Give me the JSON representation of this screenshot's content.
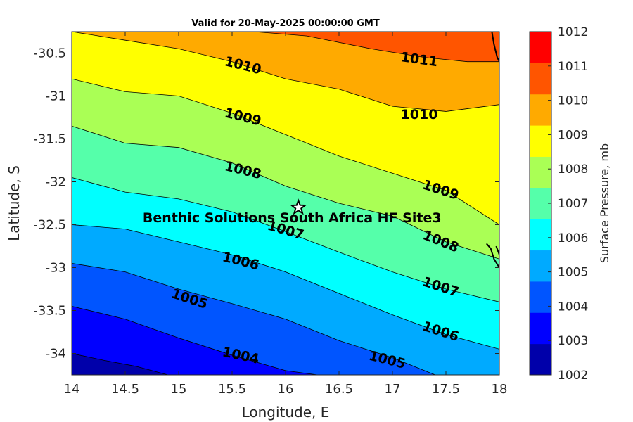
{
  "chart_data": {
    "type": "contour",
    "title": "Valid for 20-May-2025 00:00:00 GMT",
    "xlabel": "Longitude, E",
    "ylabel": "Latitude, S",
    "colorbar_label": "Surface Pressure, mb",
    "xlim": [
      14,
      18
    ],
    "ylim": [
      -34.25,
      -30.25
    ],
    "x_ticks": [
      14,
      14.5,
      15,
      15.5,
      16,
      16.5,
      17,
      17.5,
      18
    ],
    "x_tick_labels": [
      "14",
      "14.5",
      "15",
      "15.5",
      "16",
      "16.5",
      "17",
      "17.5",
      "18"
    ],
    "y_ticks": [
      -30.5,
      -31,
      -31.5,
      -32,
      -32.5,
      -33,
      -33.5,
      -34
    ],
    "y_tick_labels": [
      "-30.5",
      "-31",
      "-31.5",
      "-32",
      "-32.5",
      "-33",
      "-33.5",
      "-34"
    ],
    "colorbar_ticks": [
      "1002",
      "1003",
      "1004",
      "1005",
      "1006",
      "1007",
      "1008",
      "1009",
      "1010",
      "1011",
      "1012"
    ],
    "levels": [
      1002,
      1003,
      1004,
      1005,
      1006,
      1007,
      1008,
      1009,
      1010,
      1011,
      1012
    ],
    "level_colors": [
      "#0000aa",
      "#0000ff",
      "#0055ff",
      "#00aaff",
      "#00ffff",
      "#55ffaa",
      "#aaff55",
      "#ffff00",
      "#ffaa00",
      "#ff5500",
      "#ff0000"
    ],
    "contours": [
      {
        "level": 1011,
        "points": [
          [
            15.7,
            -30.25
          ],
          [
            16.2,
            -30.3
          ],
          [
            16.8,
            -30.45
          ],
          [
            17.3,
            -30.55
          ],
          [
            17.7,
            -30.6
          ],
          [
            18,
            -30.6
          ]
        ]
      },
      {
        "level": 1010,
        "points": [
          [
            14,
            -30.25
          ],
          [
            14.5,
            -30.35
          ],
          [
            15,
            -30.45
          ],
          [
            15.5,
            -30.6
          ],
          [
            16,
            -30.8
          ],
          [
            16.5,
            -30.92
          ],
          [
            17,
            -31.12
          ],
          [
            17.5,
            -31.18
          ],
          [
            18,
            -31.1
          ]
        ]
      },
      {
        "level": 1009,
        "points": [
          [
            14,
            -30.8
          ],
          [
            14.5,
            -30.95
          ],
          [
            15,
            -31.0
          ],
          [
            15.5,
            -31.2
          ],
          [
            16,
            -31.45
          ],
          [
            16.5,
            -31.7
          ],
          [
            17,
            -31.9
          ],
          [
            17.5,
            -32.1
          ],
          [
            18,
            -32.5
          ]
        ]
      },
      {
        "level": 1008,
        "points": [
          [
            14,
            -31.35
          ],
          [
            14.5,
            -31.55
          ],
          [
            15,
            -31.6
          ],
          [
            15.5,
            -31.78
          ],
          [
            16,
            -32.05
          ],
          [
            16.5,
            -32.25
          ],
          [
            17,
            -32.4
          ],
          [
            17.5,
            -32.7
          ],
          [
            18,
            -32.9
          ]
        ]
      },
      {
        "level": 1007,
        "points": [
          [
            14,
            -31.95
          ],
          [
            14.5,
            -32.12
          ],
          [
            15,
            -32.2
          ],
          [
            15.5,
            -32.35
          ],
          [
            16,
            -32.58
          ],
          [
            16.5,
            -32.82
          ],
          [
            17,
            -33.05
          ],
          [
            17.5,
            -33.25
          ],
          [
            18,
            -33.4
          ]
        ]
      },
      {
        "level": 1006,
        "points": [
          [
            14,
            -32.5
          ],
          [
            14.5,
            -32.55
          ],
          [
            15,
            -32.7
          ],
          [
            15.5,
            -32.85
          ],
          [
            16,
            -33.05
          ],
          [
            16.5,
            -33.3
          ],
          [
            17,
            -33.55
          ],
          [
            17.5,
            -33.78
          ],
          [
            18,
            -33.95
          ]
        ]
      },
      {
        "level": 1005,
        "points": [
          [
            14,
            -32.95
          ],
          [
            14.5,
            -33.05
          ],
          [
            15,
            -33.25
          ],
          [
            15.5,
            -33.42
          ],
          [
            16,
            -33.6
          ],
          [
            16.5,
            -33.85
          ],
          [
            17,
            -34.05
          ],
          [
            17.4,
            -34.25
          ]
        ]
      },
      {
        "level": 1004,
        "points": [
          [
            14,
            -33.45
          ],
          [
            14.5,
            -33.6
          ],
          [
            15,
            -33.82
          ],
          [
            15.5,
            -34.02
          ],
          [
            16,
            -34.2
          ],
          [
            16.3,
            -34.25
          ]
        ]
      },
      {
        "level": 1003,
        "points": [
          [
            14,
            -34.0
          ],
          [
            14.3,
            -34.08
          ],
          [
            14.6,
            -34.15
          ],
          [
            14.9,
            -34.25
          ]
        ]
      }
    ],
    "contour_labels": [
      {
        "text": "1011",
        "lon": 17.25,
        "lat": -30.58,
        "angle": 8
      },
      {
        "text": "1010",
        "lon": 15.6,
        "lat": -30.65,
        "angle": 14
      },
      {
        "text": "1010",
        "lon": 17.25,
        "lat": -31.22,
        "angle": 0
      },
      {
        "text": "1009",
        "lon": 15.6,
        "lat": -31.25,
        "angle": 14
      },
      {
        "text": "1009",
        "lon": 17.45,
        "lat": -32.1,
        "angle": 18
      },
      {
        "text": "1008",
        "lon": 15.6,
        "lat": -31.87,
        "angle": 14
      },
      {
        "text": "1008",
        "lon": 17.45,
        "lat": -32.7,
        "angle": 22
      },
      {
        "text": "1007",
        "lon": 16.0,
        "lat": -32.57,
        "angle": 16
      },
      {
        "text": "1007",
        "lon": 17.45,
        "lat": -33.23,
        "angle": 18
      },
      {
        "text": "1006",
        "lon": 15.58,
        "lat": -32.93,
        "angle": 14
      },
      {
        "text": "1006",
        "lon": 17.45,
        "lat": -33.75,
        "angle": 18
      },
      {
        "text": "1005",
        "lon": 15.1,
        "lat": -33.37,
        "angle": 18
      },
      {
        "text": "1005",
        "lon": 16.95,
        "lat": -34.08,
        "angle": 14
      },
      {
        "text": "1004",
        "lon": 15.58,
        "lat": -34.03,
        "angle": 12
      }
    ],
    "coastline": [
      [
        [
          17.93,
          -30.25
        ],
        [
          17.95,
          -30.4
        ],
        [
          17.98,
          -30.55
        ],
        [
          18.0,
          -30.6
        ]
      ],
      [
        [
          17.88,
          -32.72
        ],
        [
          17.92,
          -32.78
        ],
        [
          17.95,
          -32.9
        ],
        [
          18.0,
          -33.0
        ],
        [
          18.0,
          -32.85
        ],
        [
          17.97,
          -32.75
        ]
      ]
    ],
    "site": {
      "name": "Benthic Solutions South Africa HF Site3",
      "lon": 16.12,
      "lat": -32.3
    }
  }
}
